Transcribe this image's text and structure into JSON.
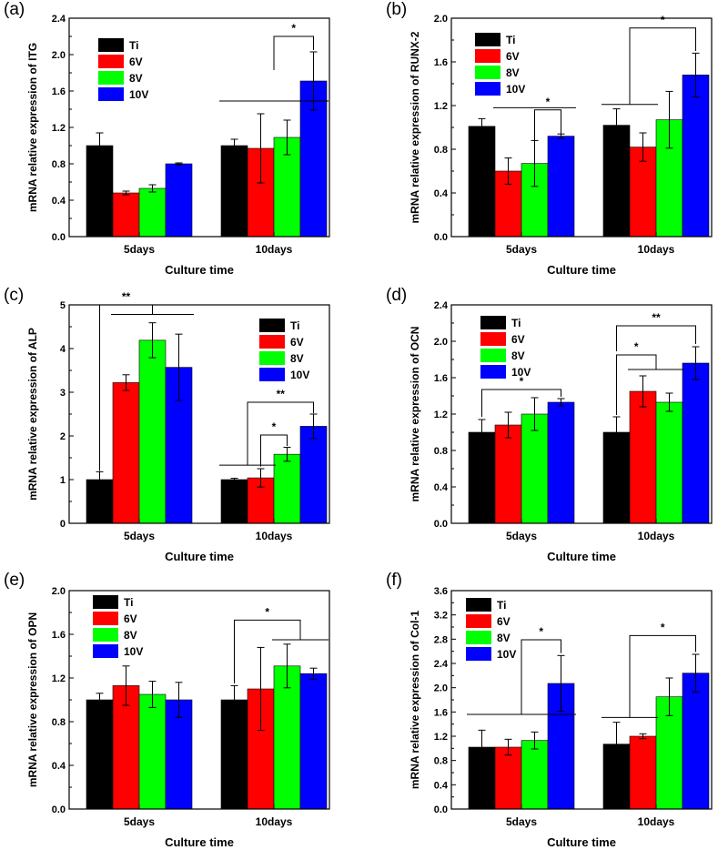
{
  "figure": {
    "series_names": [
      "Ti",
      "6V",
      "8V",
      "10V"
    ],
    "series_colors": [
      "#000000",
      "#ff0000",
      "#00ff00",
      "#0000ff"
    ]
  },
  "chart_data": [
    {
      "type": "bar",
      "panel": "(a)",
      "title": "",
      "xlabel": "Culture time",
      "ylabel": "mRNA relative expression of ITG",
      "categories": [
        "5days",
        "10days"
      ],
      "ylim": [
        0,
        2.4
      ],
      "yticks": [
        "0.0",
        "0.4",
        "0.8",
        "1.2",
        "1.6",
        "2.0",
        "2.4"
      ],
      "legend": "top-left",
      "series": [
        {
          "name": "Ti",
          "values": [
            1.0,
            1.0
          ],
          "errors": [
            0.14,
            0.07
          ]
        },
        {
          "name": "6V",
          "values": [
            0.48,
            0.97
          ],
          "errors": [
            0.02,
            0.38
          ]
        },
        {
          "name": "8V",
          "values": [
            0.53,
            1.09
          ],
          "errors": [
            0.04,
            0.19
          ]
        },
        {
          "name": "10V",
          "values": [
            0.8,
            1.71
          ],
          "errors": [
            0.01,
            0.32
          ]
        }
      ],
      "annotations": [
        {
          "text": "*"
        }
      ]
    },
    {
      "type": "bar",
      "panel": "(b)",
      "title": "",
      "xlabel": "Culture time",
      "ylabel": "mRNA relative expression of RUNX-2",
      "categories": [
        "5days",
        "10days"
      ],
      "ylim": [
        0,
        2.0
      ],
      "yticks": [
        "0.0",
        "0.4",
        "0.8",
        "1.2",
        "1.6",
        "2.0"
      ],
      "legend": "top-left",
      "series": [
        {
          "name": "Ti",
          "values": [
            1.01,
            1.02
          ],
          "errors": [
            0.07,
            0.15
          ]
        },
        {
          "name": "6V",
          "values": [
            0.6,
            0.82
          ],
          "errors": [
            0.12,
            0.13
          ]
        },
        {
          "name": "8V",
          "values": [
            0.67,
            1.07
          ],
          "errors": [
            0.21,
            0.26
          ]
        },
        {
          "name": "10V",
          "values": [
            0.92,
            1.48
          ],
          "errors": [
            0.02,
            0.2
          ]
        }
      ],
      "annotations": [
        {
          "text": "*"
        },
        {
          "text": "*"
        }
      ]
    },
    {
      "type": "bar",
      "panel": "(c)",
      "title": "",
      "xlabel": "Culture time",
      "ylabel": "mRNA relative expression of ALP",
      "categories": [
        "5days",
        "10days"
      ],
      "ylim": [
        0,
        5
      ],
      "yticks": [
        "0",
        "1",
        "2",
        "3",
        "4",
        "5"
      ],
      "legend": "top-right",
      "series": [
        {
          "name": "Ti",
          "values": [
            1.0,
            1.0
          ],
          "errors": [
            0.18,
            0.03
          ]
        },
        {
          "name": "6V",
          "values": [
            3.22,
            1.04
          ],
          "errors": [
            0.18,
            0.21
          ]
        },
        {
          "name": "8V",
          "values": [
            4.19,
            1.58
          ],
          "errors": [
            0.4,
            0.16
          ]
        },
        {
          "name": "10V",
          "values": [
            3.57,
            2.22
          ],
          "errors": [
            0.76,
            0.28
          ]
        }
      ],
      "annotations": [
        {
          "text": "**"
        },
        {
          "text": "*"
        },
        {
          "text": "**"
        }
      ]
    },
    {
      "type": "bar",
      "panel": "(d)",
      "title": "",
      "xlabel": "Culture time",
      "ylabel": "mRNA relative expression of OCN",
      "categories": [
        "5days",
        "10days"
      ],
      "ylim": [
        0,
        2.4
      ],
      "yticks": [
        "0.0",
        "0.4",
        "0.8",
        "1.2",
        "1.6",
        "2.0",
        "2.4"
      ],
      "legend": "top-left",
      "series": [
        {
          "name": "Ti",
          "values": [
            1.0,
            1.0
          ],
          "errors": [
            0.14,
            0.17
          ]
        },
        {
          "name": "6V",
          "values": [
            1.08,
            1.45
          ],
          "errors": [
            0.14,
            0.17
          ]
        },
        {
          "name": "8V",
          "values": [
            1.2,
            1.33
          ],
          "errors": [
            0.18,
            0.1
          ]
        },
        {
          "name": "10V",
          "values": [
            1.33,
            1.76
          ],
          "errors": [
            0.04,
            0.18
          ]
        }
      ],
      "annotations": [
        {
          "text": "*"
        },
        {
          "text": "*"
        },
        {
          "text": "**"
        }
      ]
    },
    {
      "type": "bar",
      "panel": "(e)",
      "title": "",
      "xlabel": "Culture time",
      "ylabel": "mRNA relative expression of OPN",
      "categories": [
        "5days",
        "10days"
      ],
      "ylim": [
        0,
        2.0
      ],
      "yticks": [
        "0.0",
        "0.4",
        "0.8",
        "1.2",
        "1.6",
        "2.0"
      ],
      "legend": "top-left",
      "series": [
        {
          "name": "Ti",
          "values": [
            1.0,
            1.0
          ],
          "errors": [
            0.06,
            0.13
          ]
        },
        {
          "name": "6V",
          "values": [
            1.13,
            1.1
          ],
          "errors": [
            0.18,
            0.38
          ]
        },
        {
          "name": "8V",
          "values": [
            1.05,
            1.31
          ],
          "errors": [
            0.12,
            0.2
          ]
        },
        {
          "name": "10V",
          "values": [
            1.0,
            1.24
          ],
          "errors": [
            0.16,
            0.05
          ]
        }
      ],
      "annotations": [
        {
          "text": "*"
        }
      ]
    },
    {
      "type": "bar",
      "panel": "(f)",
      "title": "",
      "xlabel": "Culture time",
      "ylabel": "mRNA relative expression of Col-1",
      "categories": [
        "5days",
        "10days"
      ],
      "ylim": [
        0,
        3.6
      ],
      "yticks": [
        "0.0",
        "0.4",
        "0.8",
        "1.2",
        "1.6",
        "2.0",
        "2.4",
        "2.8",
        "3.2",
        "3.6"
      ],
      "legend": "top-left",
      "series": [
        {
          "name": "Ti",
          "values": [
            1.02,
            1.07
          ],
          "errors": [
            0.28,
            0.36
          ]
        },
        {
          "name": "6V",
          "values": [
            1.02,
            1.2
          ],
          "errors": [
            0.13,
            0.04
          ]
        },
        {
          "name": "8V",
          "values": [
            1.13,
            1.85
          ],
          "errors": [
            0.14,
            0.31
          ]
        },
        {
          "name": "10V",
          "values": [
            2.07,
            2.24
          ],
          "errors": [
            0.46,
            0.31
          ]
        }
      ],
      "annotations": [
        {
          "text": "*"
        },
        {
          "text": "*"
        }
      ]
    }
  ]
}
